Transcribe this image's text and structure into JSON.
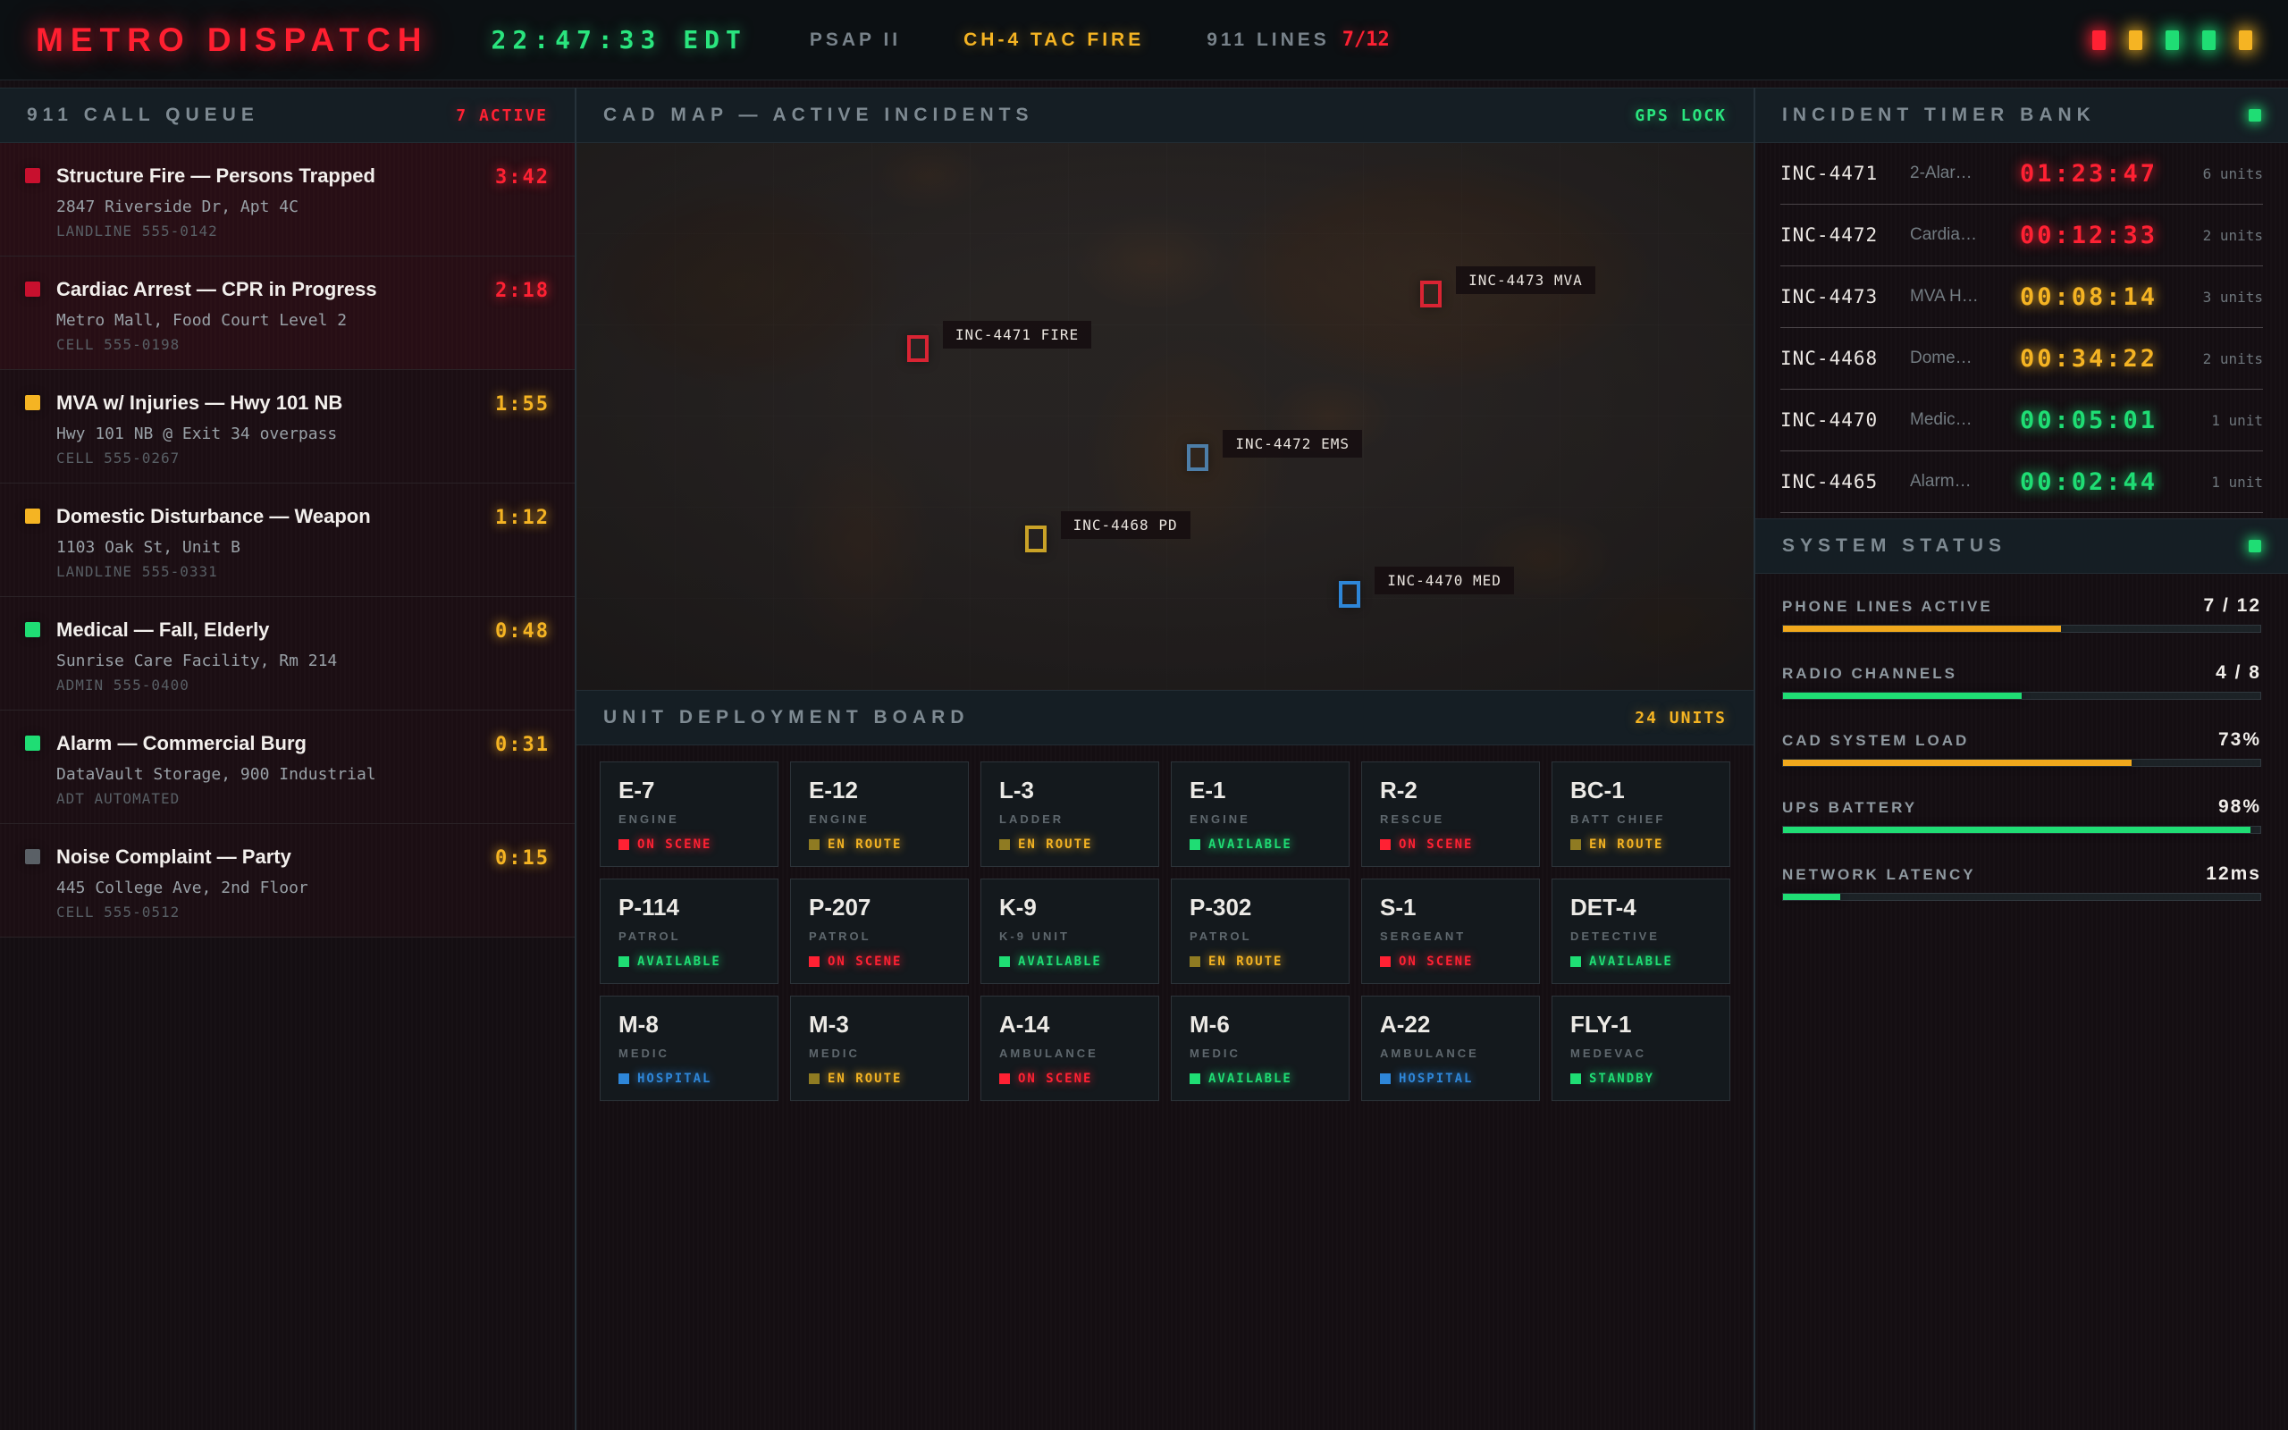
{
  "top_bar": {
    "brand": "METRO DISPATCH",
    "clock": "22:47:33 EDT",
    "psap": "PSAP II",
    "channel": "CH-4 TAC FIRE",
    "lines_label": "911 LINES",
    "lines_value": "7/12",
    "status_lights": [
      "#ff2133",
      "#f5b423",
      "#1fdd74",
      "#1fdd74",
      "#f5b423"
    ]
  },
  "call_queue": {
    "title": "911 CALL QUEUE",
    "active_label": "7 ACTIVE",
    "calls": [
      {
        "severity_color": "#c8102e",
        "title": "Structure Fire — Persons Trapped",
        "address": "2847 Riverside Dr, Apt 4C",
        "source": "LANDLINE 555-0142",
        "timer": "3:42",
        "timer_color": "#ff2133"
      },
      {
        "severity_color": "#c8102e",
        "title": "Cardiac Arrest — CPR in Progress",
        "address": "Metro Mall, Food Court Level 2",
        "source": "CELL 555-0198",
        "timer": "2:18",
        "timer_color": "#ff2133"
      },
      {
        "severity_color": "#f5b423",
        "title": "MVA w/ Injuries — Hwy 101 NB",
        "address": "Hwy 101 NB @ Exit 34 overpass",
        "source": "CELL 555-0267",
        "timer": "1:55",
        "timer_color": "#f5b423"
      },
      {
        "severity_color": "#f5b423",
        "title": "Domestic Disturbance — Weapon",
        "address": "1103 Oak St, Unit B",
        "source": "LANDLINE 555-0331",
        "timer": "1:12",
        "timer_color": "#f5b423"
      },
      {
        "severity_color": "#1fdd74",
        "title": "Medical — Fall, Elderly",
        "address": "Sunrise Care Facility, Rm 214",
        "source": "ADMIN 555-0400",
        "timer": "0:48",
        "timer_color": "#f5b423"
      },
      {
        "severity_color": "#1fdd74",
        "title": "Alarm — Commercial Burg",
        "address": "DataVault Storage, 900 Industrial",
        "source": "ADT AUTOMATED",
        "timer": "0:31",
        "timer_color": "#f5b423"
      },
      {
        "severity_color": "#5a6066",
        "title": "Noise Complaint — Party",
        "address": "445 College Ave, 2nd Floor",
        "source": "CELL 555-0512",
        "timer": "0:15",
        "timer_color": "#f5b423"
      }
    ]
  },
  "map": {
    "title": "CAD MAP — ACTIVE INCIDENTS",
    "gps_label": "GPS LOCK",
    "incidents": [
      {
        "id": "INC-4471 FIRE",
        "color": "#d92433",
        "x": "29%",
        "y": "37.5%"
      },
      {
        "id": "INC-4473 MVA",
        "color": "#d92433",
        "x": "72.6%",
        "y": "27.6%"
      },
      {
        "id": "INC-4472 EMS",
        "color": "#4d7ea8",
        "x": "52.8%",
        "y": "57.5%"
      },
      {
        "id": "INC-4468 PD",
        "color": "#c9a227",
        "x": "39%",
        "y": "72.4%"
      },
      {
        "id": "INC-4470 MED",
        "color": "#2e86d8",
        "x": "65.7%",
        "y": "82.5%"
      }
    ]
  },
  "unit_board": {
    "title": "UNIT DEPLOYMENT BOARD",
    "units_label": "24 UNITS",
    "units": [
      {
        "id": "E-7",
        "type": "ENGINE",
        "status": "ON SCENE",
        "color": "#ff2133",
        "dot": "#ff2133"
      },
      {
        "id": "E-12",
        "type": "ENGINE",
        "status": "EN ROUTE",
        "color": "#f5b423",
        "dot": "#8f7b22"
      },
      {
        "id": "L-3",
        "type": "LADDER",
        "status": "EN ROUTE",
        "color": "#f5b423",
        "dot": "#8f7b22"
      },
      {
        "id": "E-1",
        "type": "ENGINE",
        "status": "AVAILABLE",
        "color": "#1fdd74",
        "dot": "#1fdd74"
      },
      {
        "id": "R-2",
        "type": "RESCUE",
        "status": "ON SCENE",
        "color": "#ff2133",
        "dot": "#ff2133"
      },
      {
        "id": "BC-1",
        "type": "BATT CHIEF",
        "status": "EN ROUTE",
        "color": "#f5b423",
        "dot": "#8f7b22"
      },
      {
        "id": "P-114",
        "type": "PATROL",
        "status": "AVAILABLE",
        "color": "#1fdd74",
        "dot": "#1fdd74"
      },
      {
        "id": "P-207",
        "type": "PATROL",
        "status": "ON SCENE",
        "color": "#ff2133",
        "dot": "#ff2133"
      },
      {
        "id": "K-9",
        "type": "K-9 UNIT",
        "status": "AVAILABLE",
        "color": "#1fdd74",
        "dot": "#1fdd74"
      },
      {
        "id": "P-302",
        "type": "PATROL",
        "status": "EN ROUTE",
        "color": "#f5b423",
        "dot": "#8f7b22"
      },
      {
        "id": "S-1",
        "type": "SERGEANT",
        "status": "ON SCENE",
        "color": "#ff2133",
        "dot": "#ff2133"
      },
      {
        "id": "DET-4",
        "type": "DETECTIVE",
        "status": "AVAILABLE",
        "color": "#1fdd74",
        "dot": "#1fdd74"
      },
      {
        "id": "M-8",
        "type": "MEDIC",
        "status": "HOSPITAL",
        "color": "#2e86d8",
        "dot": "#2e86d8"
      },
      {
        "id": "M-3",
        "type": "MEDIC",
        "status": "EN ROUTE",
        "color": "#f5b423",
        "dot": "#8f7b22"
      },
      {
        "id": "A-14",
        "type": "AMBULANCE",
        "status": "ON SCENE",
        "color": "#ff2133",
        "dot": "#ff2133"
      },
      {
        "id": "M-6",
        "type": "MEDIC",
        "status": "AVAILABLE",
        "color": "#1fdd74",
        "dot": "#1fdd74"
      },
      {
        "id": "A-22",
        "type": "AMBULANCE",
        "status": "HOSPITAL",
        "color": "#2e86d8",
        "dot": "#2e86d8"
      },
      {
        "id": "FLY-1",
        "type": "MEDEVAC",
        "status": "STANDBY",
        "color": "#1fdd74",
        "dot": "#1fdd74"
      }
    ]
  },
  "timer_bank": {
    "title": "INCIDENT TIMER BANK",
    "led_color": "#1fdd74",
    "rows": [
      {
        "id": "INC-4471",
        "type": "2-Alar…",
        "timer": "01:23:47",
        "color": "#ff2133",
        "units": "6 units"
      },
      {
        "id": "INC-4472",
        "type": "Cardia…",
        "timer": "00:12:33",
        "color": "#ff2133",
        "units": "2 units"
      },
      {
        "id": "INC-4473",
        "type": "MVA H…",
        "timer": "00:08:14",
        "color": "#f5b423",
        "units": "3 units"
      },
      {
        "id": "INC-4468",
        "type": "Dome…",
        "timer": "00:34:22",
        "color": "#f5b423",
        "units": "2 units"
      },
      {
        "id": "INC-4470",
        "type": "Medic…",
        "timer": "00:05:01",
        "color": "#1fdd74",
        "units": "1 unit"
      },
      {
        "id": "INC-4465",
        "type": "Alarm…",
        "timer": "00:02:44",
        "color": "#1fdd74",
        "units": "1 unit"
      }
    ]
  },
  "system_status": {
    "title": "SYSTEM STATUS",
    "led_color": "#1fdd74",
    "metrics": [
      {
        "label": "PHONE LINES ACTIVE",
        "value": "7 / 12",
        "pct": "58.3%",
        "color": "#f0a81c"
      },
      {
        "label": "RADIO CHANNELS",
        "value": "4 / 8",
        "pct": "50%",
        "color": "#1fdd74"
      },
      {
        "label": "CAD SYSTEM LOAD",
        "value": "73%",
        "pct": "73%",
        "color": "#f0a81c"
      },
      {
        "label": "UPS BATTERY",
        "value": "98%",
        "pct": "98%",
        "color": "#1fdd74"
      },
      {
        "label": "NETWORK LATENCY",
        "value": "12ms",
        "pct": "12%",
        "color": "#1fdd74"
      }
    ]
  }
}
